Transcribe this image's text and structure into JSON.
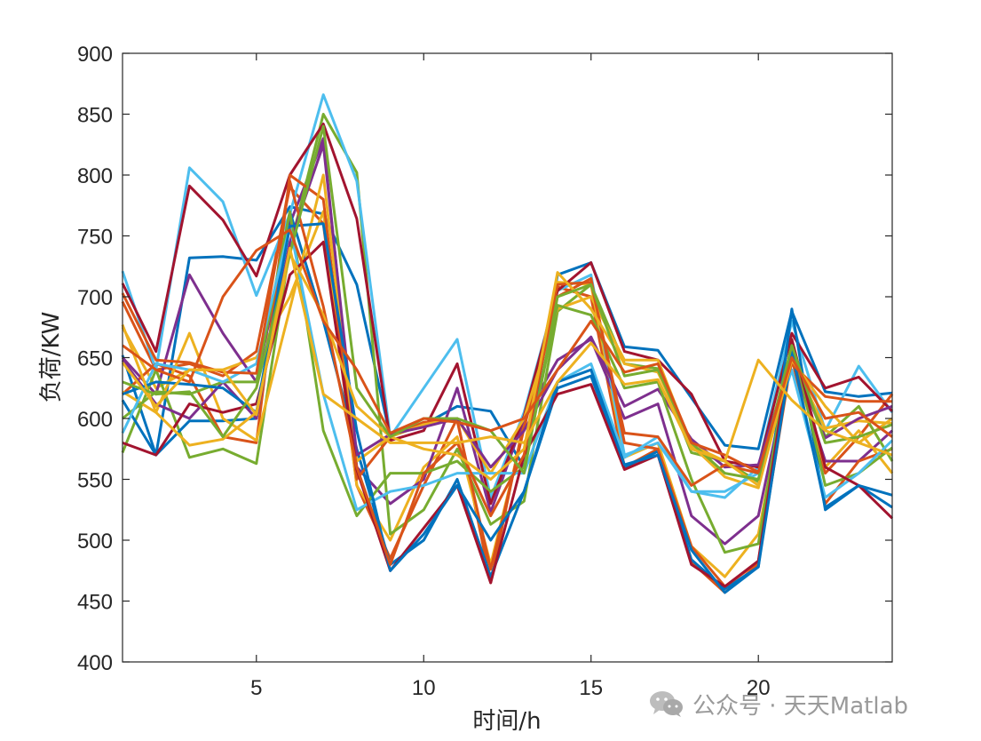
{
  "chart_data": {
    "type": "line",
    "xlabel": "时间/h",
    "ylabel": "负荷/KW",
    "xlim": [
      1,
      24
    ],
    "ylim": [
      400,
      900
    ],
    "xticks": [
      5,
      10,
      15,
      20
    ],
    "yticks": [
      400,
      450,
      500,
      550,
      600,
      650,
      700,
      750,
      800,
      850,
      900
    ],
    "grid": false,
    "x": [
      1,
      2,
      3,
      4,
      5,
      6,
      7,
      8,
      9,
      10,
      11,
      12,
      13,
      14,
      15,
      16,
      17,
      18,
      19,
      20,
      21,
      22,
      23,
      24
    ],
    "series": [
      {
        "color": "#0072BD",
        "values": [
          652,
          570,
          732,
          733,
          730,
          774,
          768,
          710,
          585,
          595,
          610,
          606,
          560,
          718,
          728,
          659,
          656,
          617,
          578,
          575,
          688,
          622,
          618,
          621
        ]
      },
      {
        "color": "#D95319",
        "values": [
          696,
          640,
          645,
          635,
          655,
          790,
          760,
          545,
          485,
          545,
          600,
          465,
          598,
          708,
          700,
          560,
          575,
          482,
          457,
          480,
          655,
          555,
          585,
          620
        ]
      },
      {
        "color": "#EDB120",
        "values": [
          675,
          625,
          640,
          640,
          650,
          700,
          770,
          545,
          500,
          560,
          585,
          480,
          592,
          712,
          710,
          568,
          580,
          495,
          470,
          505,
          650,
          560,
          590,
          555
        ]
      },
      {
        "color": "#7E2F8E",
        "values": [
          650,
          620,
          718,
          670,
          630,
          760,
          830,
          560,
          530,
          550,
          625,
          523,
          600,
          648,
          665,
          600,
          612,
          520,
          497,
          520,
          650,
          565,
          565,
          590
        ]
      },
      {
        "color": "#77AC30",
        "values": [
          572,
          640,
          568,
          575,
          563,
          740,
          850,
          802,
          505,
          525,
          575,
          513,
          532,
          688,
          710,
          645,
          641,
          572,
          565,
          548,
          653,
          585,
          610,
          565
        ]
      },
      {
        "color": "#4DBEEE",
        "values": [
          721,
          640,
          806,
          778,
          701,
          768,
          866,
          795,
          585,
          625,
          665,
          535,
          605,
          705,
          718,
          570,
          580,
          540,
          535,
          560,
          680,
          590,
          643,
          605
        ]
      },
      {
        "color": "#A2142F",
        "values": [
          711,
          655,
          791,
          763,
          717,
          800,
          842,
          764,
          582,
          590,
          645,
          530,
          602,
          705,
          728,
          655,
          648,
          620,
          565,
          560,
          670,
          625,
          634,
          606
        ]
      },
      {
        "color": "#0072BD",
        "values": [
          615,
          570,
          598,
          598,
          600,
          770,
          680,
          575,
          480,
          500,
          550,
          470,
          540,
          625,
          635,
          560,
          573,
          484,
          460,
          478,
          690,
          525,
          545,
          527
        ]
      },
      {
        "color": "#D95319",
        "values": [
          620,
          645,
          635,
          585,
          580,
          800,
          780,
          550,
          585,
          597,
          598,
          476,
          592,
          700,
          715,
          580,
          575,
          495,
          462,
          482,
          650,
          530,
          565,
          575
        ]
      },
      {
        "color": "#EDB120",
        "values": [
          622,
          605,
          670,
          600,
          582,
          690,
          800,
          565,
          585,
          595,
          600,
          555,
          600,
          690,
          700,
          648,
          648,
          578,
          552,
          543,
          648,
          592,
          598,
          596
        ]
      },
      {
        "color": "#7E2F8E",
        "values": [
          648,
          612,
          600,
          630,
          600,
          745,
          825,
          570,
          587,
          593,
          600,
          560,
          590,
          640,
          667,
          610,
          624,
          583,
          560,
          562,
          649,
          584,
          600,
          610
        ]
      },
      {
        "color": "#77AC30",
        "values": [
          600,
          622,
          620,
          630,
          630,
          770,
          590,
          520,
          555,
          555,
          565,
          540,
          560,
          693,
          685,
          625,
          630,
          550,
          490,
          497,
          665,
          545,
          555,
          576
        ]
      },
      {
        "color": "#4DBEEE",
        "values": [
          588,
          645,
          640,
          630,
          645,
          758,
          620,
          525,
          540,
          545,
          555,
          555,
          555,
          630,
          645,
          568,
          585,
          540,
          540,
          555,
          640,
          535,
          555,
          582
        ]
      },
      {
        "color": "#A2142F",
        "values": [
          580,
          570,
          612,
          605,
          612,
          718,
          745,
          558,
          475,
          510,
          545,
          465,
          570,
          620,
          628,
          558,
          570,
          480,
          462,
          483,
          665,
          560,
          545,
          518
        ]
      },
      {
        "color": "#0072BD",
        "values": [
          620,
          630,
          628,
          625,
          605,
          758,
          760,
          590,
          475,
          505,
          545,
          500,
          540,
          630,
          640,
          562,
          570,
          492,
          457,
          478,
          655,
          527,
          545,
          537
        ]
      },
      {
        "color": "#D95319",
        "values": [
          703,
          648,
          646,
          638,
          637,
          795,
          692,
          560,
          480,
          555,
          580,
          520,
          570,
          710,
          712,
          588,
          585,
          545,
          562,
          555,
          645,
          618,
          614,
          614
        ]
      },
      {
        "color": "#EDB120",
        "values": [
          677,
          605,
          578,
          583,
          605,
          735,
          685,
          610,
          585,
          575,
          570,
          550,
          575,
          720,
          690,
          645,
          638,
          578,
          565,
          545,
          648,
          610,
          580,
          600
        ]
      },
      {
        "color": "#77AC30",
        "values": [
          630,
          620,
          622,
          585,
          625,
          735,
          840,
          625,
          585,
          600,
          600,
          590,
          555,
          700,
          710,
          635,
          640,
          580,
          555,
          550,
          660,
          580,
          585,
          595
        ]
      },
      {
        "color": "#D95319",
        "values": [
          660,
          640,
          630,
          700,
          738,
          755,
          680,
          640,
          588,
          600,
          597,
          590,
          600,
          640,
          680,
          638,
          645,
          580,
          570,
          556,
          650,
          600,
          605,
          585
        ]
      },
      {
        "color": "#EDB120",
        "values": [
          646,
          610,
          640,
          640,
          603,
          740,
          620,
          600,
          580,
          580,
          580,
          585,
          580,
          630,
          662,
          628,
          632,
          575,
          565,
          648,
          615,
          590,
          580,
          570
        ]
      }
    ]
  },
  "watermark": {
    "text": "公众号 · 天天Matlab"
  }
}
